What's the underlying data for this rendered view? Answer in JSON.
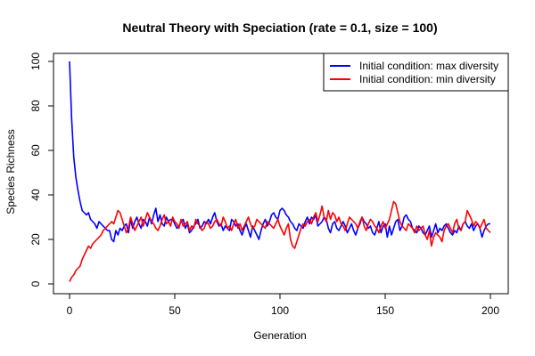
{
  "chart_data": {
    "type": "line",
    "title": "Neutral Theory with Speciation (rate = 0.1, size = 100)",
    "xlabel": "Generation",
    "ylabel": "Species Richness",
    "xlim": [
      0,
      200
    ],
    "ylim": [
      0,
      100
    ],
    "x_ticks": [
      "0",
      "50",
      "100",
      "150",
      "200"
    ],
    "y_ticks": [
      "0",
      "20",
      "40",
      "60",
      "80",
      "100"
    ],
    "grid": false,
    "legend_position": "top-right",
    "x": [
      0,
      1,
      2,
      3,
      4,
      5,
      6,
      7,
      8,
      9,
      10,
      11,
      12,
      13,
      14,
      15,
      16,
      17,
      18,
      19,
      20,
      21,
      22,
      23,
      24,
      25,
      26,
      27,
      28,
      29,
      30,
      31,
      32,
      33,
      34,
      35,
      36,
      37,
      38,
      39,
      40,
      41,
      42,
      43,
      44,
      45,
      46,
      47,
      48,
      49,
      50,
      51,
      52,
      53,
      54,
      55,
      56,
      57,
      58,
      59,
      60,
      61,
      62,
      63,
      64,
      65,
      66,
      67,
      68,
      69,
      70,
      71,
      72,
      73,
      74,
      75,
      76,
      77,
      78,
      79,
      80,
      81,
      82,
      83,
      84,
      85,
      86,
      87,
      88,
      89,
      90,
      91,
      92,
      93,
      94,
      95,
      96,
      97,
      98,
      99,
      100,
      101,
      102,
      103,
      104,
      105,
      106,
      107,
      108,
      109,
      110,
      111,
      112,
      113,
      114,
      115,
      116,
      117,
      118,
      119,
      120,
      121,
      122,
      123,
      124,
      125,
      126,
      127,
      128,
      129,
      130,
      131,
      132,
      133,
      134,
      135,
      136,
      137,
      138,
      139,
      140,
      141,
      142,
      143,
      144,
      145,
      146,
      147,
      148,
      149,
      150,
      151,
      152,
      153,
      154,
      155,
      156,
      157,
      158,
      159,
      160,
      161,
      162,
      163,
      164,
      165,
      166,
      167,
      168,
      169,
      170,
      171,
      172,
      173,
      174,
      175,
      176,
      177,
      178,
      179,
      180,
      181,
      182,
      183,
      184,
      185,
      186,
      187,
      188,
      189,
      190,
      191,
      192,
      193,
      194,
      195,
      196,
      197,
      198,
      199,
      200
    ],
    "series": [
      {
        "name": "Initial condition: max diversity",
        "color": "#0000ff",
        "values": [
          100,
          74,
          57,
          48,
          42,
          37,
          33,
          32,
          31,
          32,
          29,
          28,
          27,
          25,
          28,
          27,
          26,
          25,
          24,
          24,
          20,
          19,
          24,
          22,
          25,
          24,
          26,
          27,
          23,
          29,
          25,
          28,
          30,
          27,
          25,
          29,
          28,
          26,
          30,
          27,
          31,
          34,
          28,
          31,
          27,
          26,
          30,
          28,
          29,
          29,
          27,
          25,
          26,
          28,
          29,
          25,
          27,
          23,
          24,
          26,
          27,
          29,
          25,
          26,
          28,
          27,
          29,
          27,
          30,
          32,
          28,
          26,
          27,
          24,
          26,
          25,
          24,
          29,
          28,
          26,
          27,
          24,
          22,
          25,
          27,
          24,
          21,
          26,
          24,
          22,
          20,
          24,
          27,
          29,
          26,
          28,
          31,
          32,
          30,
          29,
          33,
          34,
          33,
          31,
          30,
          28,
          27,
          25,
          24,
          27,
          26,
          25,
          28,
          30,
          27,
          30,
          29,
          31,
          26,
          27,
          28,
          30,
          29,
          25,
          23,
          27,
          28,
          25,
          24,
          26,
          28,
          26,
          23,
          25,
          27,
          24,
          22,
          25,
          27,
          30,
          28,
          27,
          25,
          26,
          23,
          22,
          25,
          28,
          23,
          26,
          27,
          21,
          26,
          22,
          25,
          28,
          29,
          24,
          26,
          30,
          31,
          29,
          28,
          25,
          24,
          23,
          26,
          25,
          23,
          22,
          24,
          26,
          21,
          24,
          27,
          23,
          25,
          24,
          26,
          27,
          25,
          23,
          22,
          24,
          23,
          26,
          24,
          27,
          28,
          26,
          25,
          27,
          24,
          26,
          27,
          25,
          21,
          24,
          26,
          27,
          27
        ]
      },
      {
        "name": "Initial condition: min diversity",
        "color": "#ff0000",
        "values": [
          1,
          3,
          4,
          6,
          7,
          8,
          11,
          13,
          15,
          17,
          16,
          18,
          19,
          20,
          21,
          22,
          24,
          25,
          26,
          27,
          28,
          27,
          30,
          33,
          32,
          29,
          26,
          23,
          25,
          30,
          27,
          24,
          26,
          28,
          30,
          26,
          29,
          32,
          30,
          28,
          27,
          25,
          24,
          26,
          29,
          31,
          27,
          28,
          26,
          30,
          28,
          27,
          25,
          29,
          26,
          27,
          28,
          24,
          26,
          25,
          29,
          27,
          26,
          24,
          25,
          28,
          27,
          25,
          26,
          28,
          29,
          27,
          26,
          30,
          28,
          25,
          26,
          24,
          27,
          29,
          25,
          27,
          24,
          26,
          28,
          30,
          27,
          25,
          26,
          29,
          28,
          27,
          26,
          25,
          28,
          27,
          26,
          25,
          27,
          29,
          26,
          24,
          22,
          25,
          27,
          20,
          17,
          16,
          19,
          22,
          25,
          27,
          26,
          28,
          29,
          27,
          30,
          32,
          28,
          31,
          35,
          30,
          28,
          33,
          29,
          32,
          31,
          28,
          30,
          27,
          26,
          24,
          27,
          30,
          29,
          28,
          27,
          25,
          28,
          30,
          26,
          24,
          27,
          29,
          28,
          26,
          25,
          23,
          26,
          28,
          25,
          27,
          29,
          33,
          37,
          36,
          32,
          28,
          26,
          25,
          24,
          27,
          26,
          25,
          23,
          26,
          24,
          25,
          26,
          22,
          20,
          24,
          17,
          21,
          23,
          22,
          21,
          19,
          24,
          26,
          27,
          25,
          23,
          27,
          29,
          25,
          24,
          27,
          28,
          33,
          31,
          29,
          26,
          28,
          27,
          25,
          27,
          29,
          25,
          24,
          23
        ]
      }
    ]
  }
}
